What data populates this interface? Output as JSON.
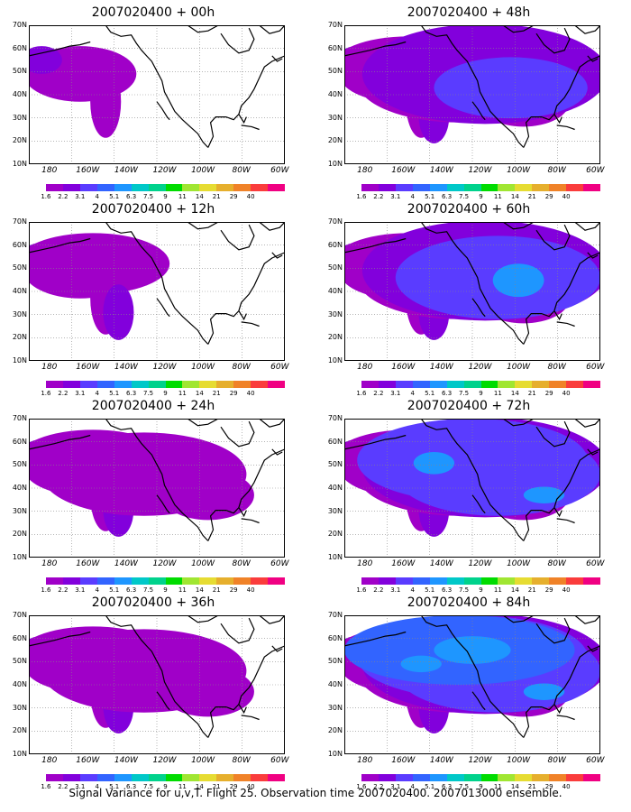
{
  "panels": [
    {
      "title": "2007020400 + 00h",
      "field_level": 0
    },
    {
      "title": "2007020400 + 48h",
      "field_level": 3
    },
    {
      "title": "2007020400 + 12h",
      "field_level": 1
    },
    {
      "title": "2007020400 + 60h",
      "field_level": 4
    },
    {
      "title": "2007020400 + 24h",
      "field_level": 2
    },
    {
      "title": "2007020400 + 72h",
      "field_level": 5
    },
    {
      "title": "2007020400 + 36h",
      "field_level": 2
    },
    {
      "title": "2007020400 + 84h",
      "field_level": 6
    }
  ],
  "axes": {
    "lat_labels": [
      "70N",
      "60N",
      "50N",
      "40N",
      "30N",
      "20N",
      "10N"
    ],
    "lon_labels": [
      "180",
      "160W",
      "140W",
      "120W",
      "100W",
      "80W",
      "60W"
    ]
  },
  "colorbar": {
    "labels": [
      "1.6",
      "2.2",
      "3.1",
      "4",
      "5.1",
      "6.3",
      "7.5",
      "9",
      "11",
      "14",
      "21",
      "29",
      "40"
    ],
    "colors": [
      "#ffffff",
      "#a000c8",
      "#8200dc",
      "#5a3cff",
      "#3264ff",
      "#1e96ff",
      "#00c8c8",
      "#00d28c",
      "#00dc00",
      "#a0e632",
      "#e6dc32",
      "#e6af2d",
      "#f08228",
      "#fa3c3c",
      "#f00082"
    ]
  },
  "caption": "Signal Variance for u,v,T. Flight 25. Observation time 2007020400. 2007013000 ensemble."
}
